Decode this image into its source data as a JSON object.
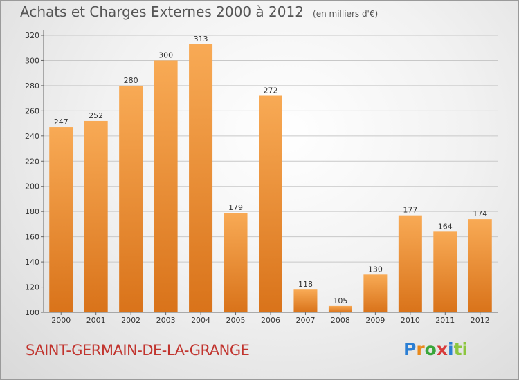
{
  "header": {
    "title": "Achats et Charges Externes 2000 à 2012",
    "unit": "(en milliers d'€)"
  },
  "footer": {
    "city": "SAINT-GERMAIN-DE-LA-GRANGE",
    "logo_parts": [
      "P",
      "r",
      "o",
      "x",
      "i",
      "ti"
    ]
  },
  "colors": {
    "bar_light": "#f8aa55",
    "bar_dark": "#d9731a",
    "city_text": "#c1342e"
  },
  "chart_data": {
    "type": "bar",
    "title": "Achats et Charges Externes 2000 à 2012",
    "xlabel": "",
    "ylabel": "",
    "categories": [
      "2000",
      "2001",
      "2002",
      "2003",
      "2004",
      "2005",
      "2006",
      "2007",
      "2008",
      "2009",
      "2010",
      "2011",
      "2012"
    ],
    "values": [
      247,
      252,
      280,
      300,
      313,
      179,
      272,
      118,
      105,
      130,
      177,
      164,
      174
    ],
    "ylim": [
      100,
      320
    ],
    "yticks": [
      100,
      120,
      140,
      160,
      180,
      200,
      220,
      240,
      260,
      280,
      300,
      320
    ],
    "grid": true,
    "legend": "none"
  }
}
